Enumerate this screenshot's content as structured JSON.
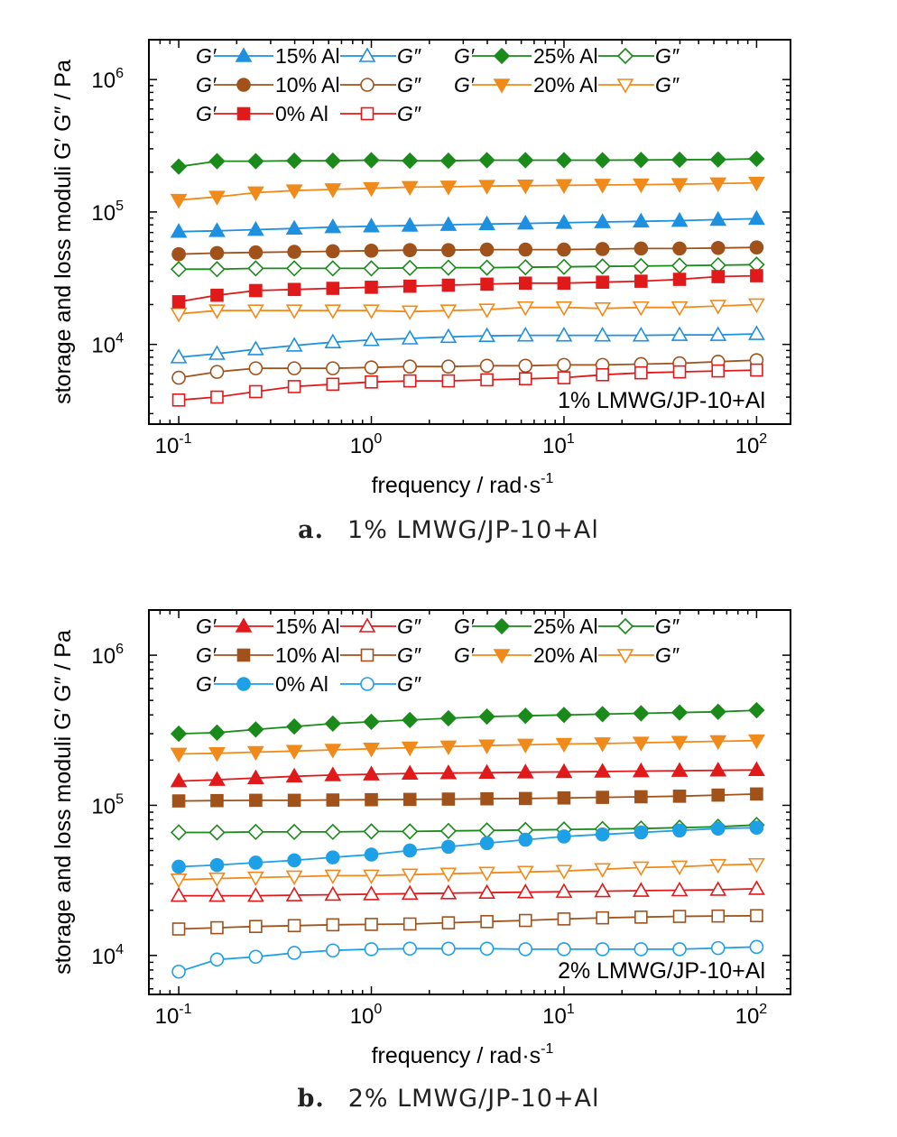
{
  "chart_data": [
    {
      "type": "line",
      "caption_letter": "a.",
      "caption_text": "1% LMWG/JP-10+Al",
      "annotation": "1% LMWG/JP-10+Al",
      "xlabel": "frequency / rad·s",
      "xlabel_sup": "-1",
      "ylabel": "storage and loss moduli G′ G″ / Pa",
      "x_scale": "log",
      "y_scale": "log",
      "xlim": [
        0.07,
        150
      ],
      "ylim": [
        2500,
        2000000
      ],
      "grid": false,
      "legend_position": "top-left",
      "x": [
        0.1,
        0.158,
        0.251,
        0.398,
        0.631,
        1,
        1.585,
        2.512,
        3.981,
        6.31,
        10,
        15.85,
        25.12,
        39.81,
        63.1,
        100
      ],
      "legend_rows": [
        [
          {
            "g1": "G′",
            "label": "15% Al",
            "g2": "G″",
            "series": "15% Al"
          },
          {
            "g1": "G′",
            "label": "25% Al",
            "g2": "G″",
            "series": "25% Al"
          }
        ],
        [
          {
            "g1": "G′",
            "label": "10% Al",
            "g2": "G″",
            "series": "10% Al"
          },
          {
            "g1": "G′",
            "label": "20% Al",
            "g2": "G″",
            "series": "20% Al"
          }
        ],
        [
          {
            "g1": "G′",
            "label": "0%  Al",
            "g2": "G″",
            "series": "0% Al"
          }
        ]
      ],
      "series": [
        {
          "name": "25% Al",
          "color": "#1a8a1a",
          "marker": "diamond",
          "G_prime": [
            220000,
            242000,
            242000,
            244000,
            244000,
            246000,
            244000,
            244000,
            246000,
            246000,
            246000,
            246000,
            247000,
            248000,
            249000,
            252000
          ],
          "G_double_prime": [
            37000,
            37000,
            37500,
            37500,
            37500,
            37500,
            37800,
            38000,
            38000,
            38200,
            38500,
            38800,
            39000,
            39300,
            39600,
            40000
          ]
        },
        {
          "name": "20% Al",
          "color": "#f08a1a",
          "marker": "triangle-down",
          "G_prime": [
            123000,
            130000,
            140000,
            145000,
            148000,
            151000,
            154000,
            155000,
            157000,
            158000,
            159000,
            160000,
            161000,
            162000,
            164000,
            166000
          ],
          "G_double_prime": [
            17000,
            18000,
            18000,
            18000,
            18000,
            18000,
            17700,
            18000,
            18300,
            19000,
            19000,
            18700,
            19000,
            19000,
            19500,
            20000
          ]
        },
        {
          "name": "15% Al",
          "color": "#1e90e0",
          "marker": "triangle-up",
          "G_prime": [
            71000,
            72000,
            73500,
            75000,
            77000,
            78000,
            79000,
            80000,
            81000,
            82000,
            83000,
            84000,
            85000,
            86000,
            87500,
            89000
          ],
          "G_double_prime": [
            8000,
            8500,
            9200,
            9800,
            10400,
            10800,
            11100,
            11400,
            11600,
            11700,
            11700,
            11700,
            11700,
            11800,
            11800,
            12000
          ]
        },
        {
          "name": "10% Al",
          "color": "#a0521a",
          "marker": "circle",
          "G_prime": [
            48000,
            49000,
            49500,
            50000,
            50500,
            51000,
            51500,
            51500,
            52000,
            52000,
            52000,
            52500,
            53000,
            53000,
            53500,
            54000
          ],
          "G_double_prime": [
            5600,
            6200,
            6600,
            6600,
            6600,
            6700,
            6800,
            6800,
            6900,
            6900,
            7000,
            7000,
            7100,
            7200,
            7400,
            7600
          ]
        },
        {
          "name": "0% Al",
          "color": "#e01a1a",
          "marker": "square",
          "G_prime": [
            21000,
            23500,
            25500,
            26000,
            26500,
            27000,
            27500,
            28000,
            28500,
            29000,
            29000,
            29500,
            30000,
            31000,
            32500,
            33000
          ],
          "G_double_prime": [
            3800,
            4000,
            4400,
            4800,
            5000,
            5200,
            5300,
            5300,
            5400,
            5500,
            5600,
            5900,
            6100,
            6200,
            6300,
            6400
          ]
        }
      ]
    },
    {
      "type": "line",
      "caption_letter": "b.",
      "caption_text": "2% LMWG/JP-10+Al",
      "annotation": "2% LMWG/JP-10+Al",
      "xlabel": "frequency / rad·s",
      "xlabel_sup": "-1",
      "ylabel": "storage and loss moduli G′ G″ / Pa",
      "x_scale": "log",
      "y_scale": "log",
      "xlim": [
        0.07,
        150
      ],
      "ylim": [
        5500,
        2000000
      ],
      "grid": false,
      "legend_position": "top-left",
      "x": [
        0.1,
        0.158,
        0.251,
        0.398,
        0.631,
        1,
        1.585,
        2.512,
        3.981,
        6.31,
        10,
        15.85,
        25.12,
        39.81,
        63.1,
        100
      ],
      "legend_rows": [
        [
          {
            "g1": "G′",
            "label": "15% Al",
            "g2": "G″",
            "series": "15% Al"
          },
          {
            "g1": "G′",
            "label": "25% Al",
            "g2": "G″",
            "series": "25% Al"
          }
        ],
        [
          {
            "g1": "G′",
            "label": "10% Al",
            "g2": "G″",
            "series": "10% Al"
          },
          {
            "g1": "G′",
            "label": "20% Al",
            "g2": "G″",
            "series": "20% Al"
          }
        ],
        [
          {
            "g1": "G′",
            "label": "0%  Al",
            "g2": "G″",
            "series": "0% Al"
          }
        ]
      ],
      "series": [
        {
          "name": "25% Al",
          "color": "#1a8a1a",
          "marker": "diamond",
          "G_prime": [
            300000,
            305000,
            320000,
            335000,
            350000,
            360000,
            370000,
            380000,
            390000,
            395000,
            400000,
            405000,
            410000,
            415000,
            420000,
            430000
          ],
          "G_double_prime": [
            66000,
            66000,
            66500,
            66500,
            66500,
            67000,
            67000,
            67500,
            68000,
            68500,
            69000,
            69500,
            70000,
            71000,
            72000,
            74000
          ]
        },
        {
          "name": "20% Al",
          "color": "#f08a1a",
          "marker": "triangle-down",
          "G_prime": [
            220000,
            222000,
            226000,
            230000,
            234000,
            238000,
            242000,
            246000,
            250000,
            253000,
            256000,
            258000,
            261000,
            264000,
            267000,
            270000
          ],
          "G_double_prime": [
            32000,
            32500,
            33000,
            33500,
            34000,
            34000,
            34500,
            35000,
            35500,
            36000,
            36500,
            37500,
            38500,
            39000,
            40000,
            40500
          ]
        },
        {
          "name": "15% Al",
          "color": "#e01a1a",
          "marker": "triangle-up",
          "G_prime": [
            145000,
            148000,
            152000,
            156000,
            159000,
            161000,
            163000,
            164000,
            165000,
            166000,
            167000,
            168000,
            169000,
            170000,
            171000,
            172000
          ],
          "G_double_prime": [
            25000,
            25000,
            25000,
            25200,
            25400,
            25600,
            25800,
            26000,
            26200,
            26400,
            26600,
            26800,
            27000,
            27200,
            27400,
            27800
          ]
        },
        {
          "name": "10% Al",
          "color": "#a0521a",
          "marker": "square",
          "G_prime": [
            107000,
            107500,
            108000,
            108000,
            108500,
            109000,
            109500,
            110000,
            110500,
            111000,
            112000,
            113000,
            114000,
            115000,
            117000,
            119000
          ],
          "G_double_prime": [
            15000,
            15300,
            15600,
            15800,
            16000,
            16100,
            16200,
            16500,
            16800,
            17100,
            17500,
            17800,
            18000,
            18200,
            18300,
            18400
          ]
        },
        {
          "name": "0% Al",
          "color": "#1ea0e6",
          "marker": "circle",
          "G_prime": [
            39000,
            40000,
            41500,
            43000,
            45000,
            47000,
            50000,
            53000,
            56000,
            59000,
            62000,
            64000,
            66000,
            68000,
            70000,
            71000
          ],
          "G_double_prime": [
            7800,
            9400,
            9800,
            10400,
            10800,
            11000,
            11100,
            11100,
            11100,
            11000,
            11000,
            11000,
            11000,
            11000,
            11200,
            11400
          ]
        }
      ]
    }
  ]
}
